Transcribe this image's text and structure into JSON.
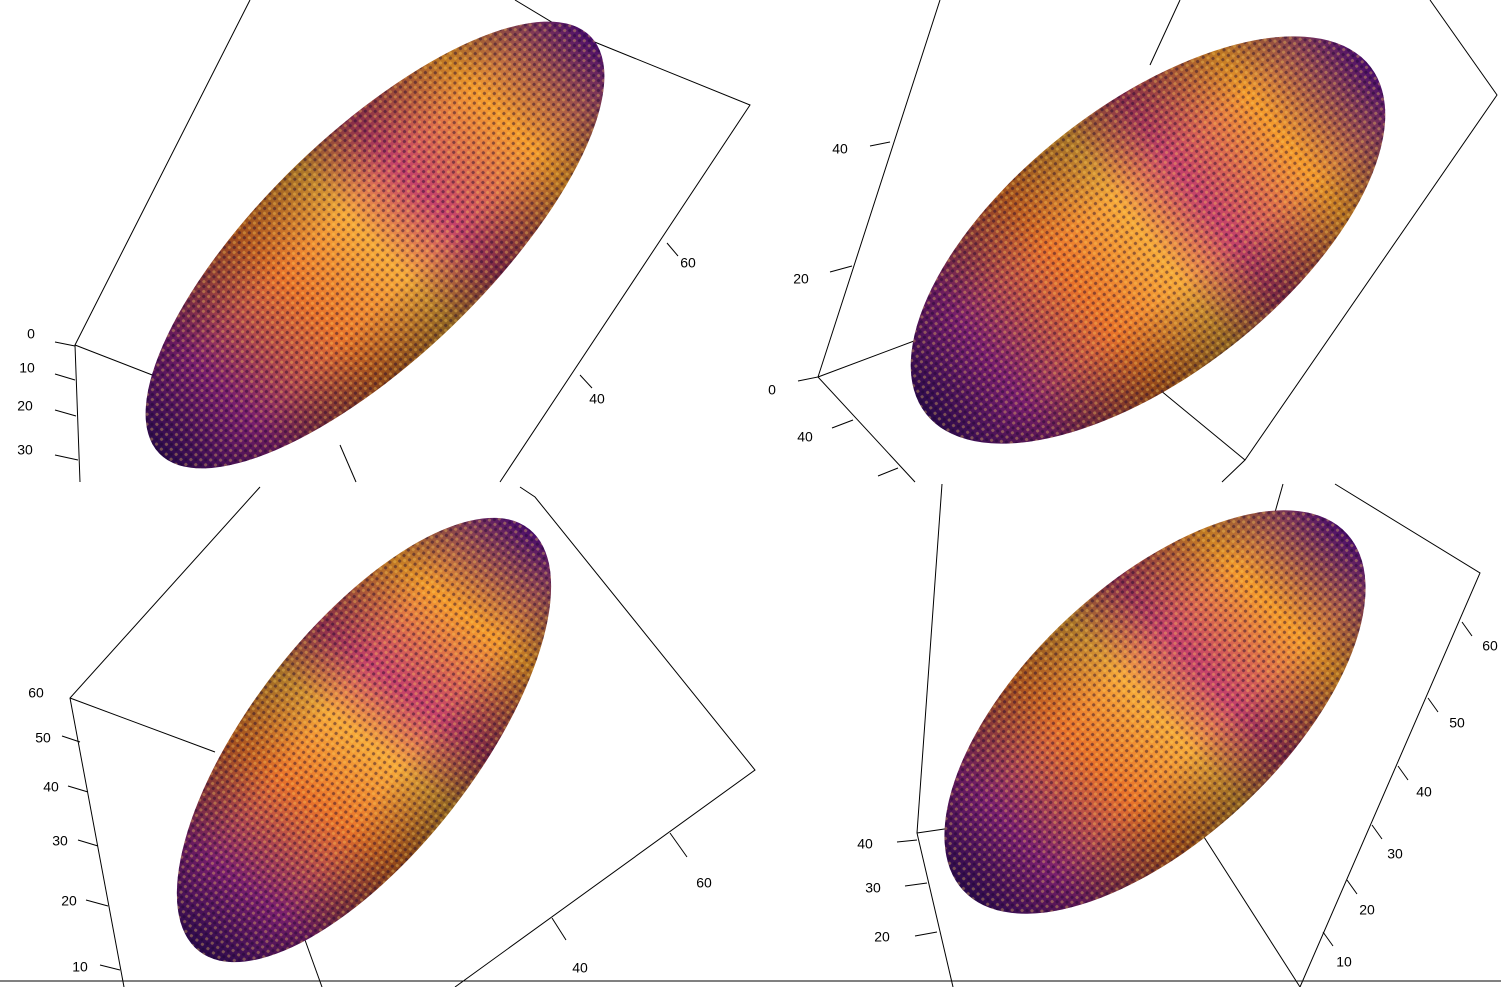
{
  "panels": [
    {
      "ticks_left": [
        "0",
        "10",
        "20",
        "30"
      ],
      "ticks_right": [
        "40",
        "60"
      ]
    },
    {
      "ticks_left": [
        "40",
        "20",
        "0"
      ],
      "ticks_bottom": [
        "40"
      ]
    },
    {
      "ticks_left": [
        "60",
        "50",
        "40",
        "30",
        "20",
        "10"
      ],
      "ticks_right": [
        "40",
        "60"
      ]
    },
    {
      "ticks_left": [
        "40",
        "30",
        "20"
      ],
      "ticks_right": [
        "10",
        "20",
        "30",
        "40",
        "50",
        "60"
      ]
    }
  ]
}
